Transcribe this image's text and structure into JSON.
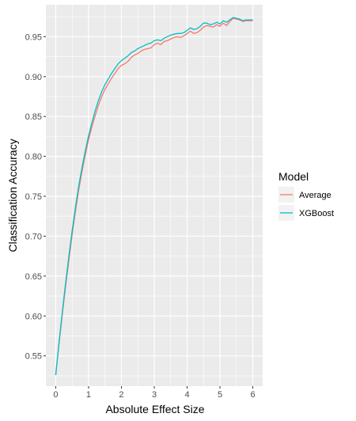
{
  "chart_data": {
    "type": "line",
    "xlabel": "Absolute Effect Size",
    "ylabel": "Classification Accuracy",
    "xlim": [
      -0.3,
      6.3
    ],
    "ylim": [
      0.512,
      0.99
    ],
    "xticks": [
      0,
      1,
      2,
      3,
      4,
      5,
      6
    ],
    "xtick_labels": [
      "0",
      "1",
      "2",
      "3",
      "4",
      "5",
      "6"
    ],
    "yticks": [
      0.55,
      0.6,
      0.65,
      0.7,
      0.75,
      0.8,
      0.85,
      0.9,
      0.95
    ],
    "ytick_labels": [
      "0.55",
      "0.60",
      "0.65",
      "0.70",
      "0.75",
      "0.80",
      "0.85",
      "0.90",
      "0.95"
    ],
    "grid": true,
    "legend_placement": "right",
    "legend_title": "Model",
    "x": [
      0,
      0.1,
      0.2,
      0.3,
      0.4,
      0.5,
      0.6,
      0.7,
      0.8,
      0.9,
      1.0,
      1.1,
      1.2,
      1.3,
      1.4,
      1.5,
      1.6,
      1.7,
      1.8,
      1.9,
      2.0,
      2.1,
      2.2,
      2.3,
      2.4,
      2.5,
      2.6,
      2.7,
      2.8,
      2.9,
      3.0,
      3.1,
      3.2,
      3.3,
      3.4,
      3.5,
      3.6,
      3.7,
      3.8,
      3.9,
      4.0,
      4.1,
      4.2,
      4.3,
      4.4,
      4.5,
      4.6,
      4.7,
      4.8,
      4.9,
      5.0,
      5.1,
      5.2,
      5.3,
      5.4,
      5.5,
      5.6,
      5.7,
      5.8,
      5.9,
      6.0
    ],
    "series": [
      {
        "name": "Average",
        "color": "#F8766D",
        "values": [
          0.526,
          0.565,
          0.602,
          0.637,
          0.67,
          0.702,
          0.731,
          0.758,
          0.781,
          0.802,
          0.821,
          0.837,
          0.851,
          0.864,
          0.875,
          0.884,
          0.891,
          0.898,
          0.904,
          0.91,
          0.914,
          0.916,
          0.919,
          0.924,
          0.927,
          0.929,
          0.932,
          0.934,
          0.935,
          0.936,
          0.94,
          0.942,
          0.94,
          0.944,
          0.945,
          0.947,
          0.949,
          0.95,
          0.949,
          0.951,
          0.954,
          0.957,
          0.954,
          0.955,
          0.958,
          0.962,
          0.964,
          0.963,
          0.962,
          0.965,
          0.963,
          0.967,
          0.964,
          0.969,
          0.973,
          0.972,
          0.971,
          0.969,
          0.97,
          0.97,
          0.97
        ]
      },
      {
        "name": "XGBoost",
        "color": "#00BFC4",
        "values": [
          0.526,
          0.567,
          0.605,
          0.641,
          0.675,
          0.707,
          0.736,
          0.763,
          0.786,
          0.807,
          0.826,
          0.842,
          0.857,
          0.87,
          0.881,
          0.89,
          0.897,
          0.904,
          0.91,
          0.916,
          0.92,
          0.923,
          0.926,
          0.93,
          0.932,
          0.935,
          0.937,
          0.939,
          0.941,
          0.942,
          0.945,
          0.946,
          0.945,
          0.948,
          0.95,
          0.952,
          0.953,
          0.954,
          0.954,
          0.955,
          0.958,
          0.961,
          0.959,
          0.96,
          0.963,
          0.967,
          0.967,
          0.965,
          0.966,
          0.968,
          0.966,
          0.97,
          0.968,
          0.971,
          0.974,
          0.973,
          0.972,
          0.97,
          0.971,
          0.971,
          0.971
        ]
      }
    ]
  }
}
